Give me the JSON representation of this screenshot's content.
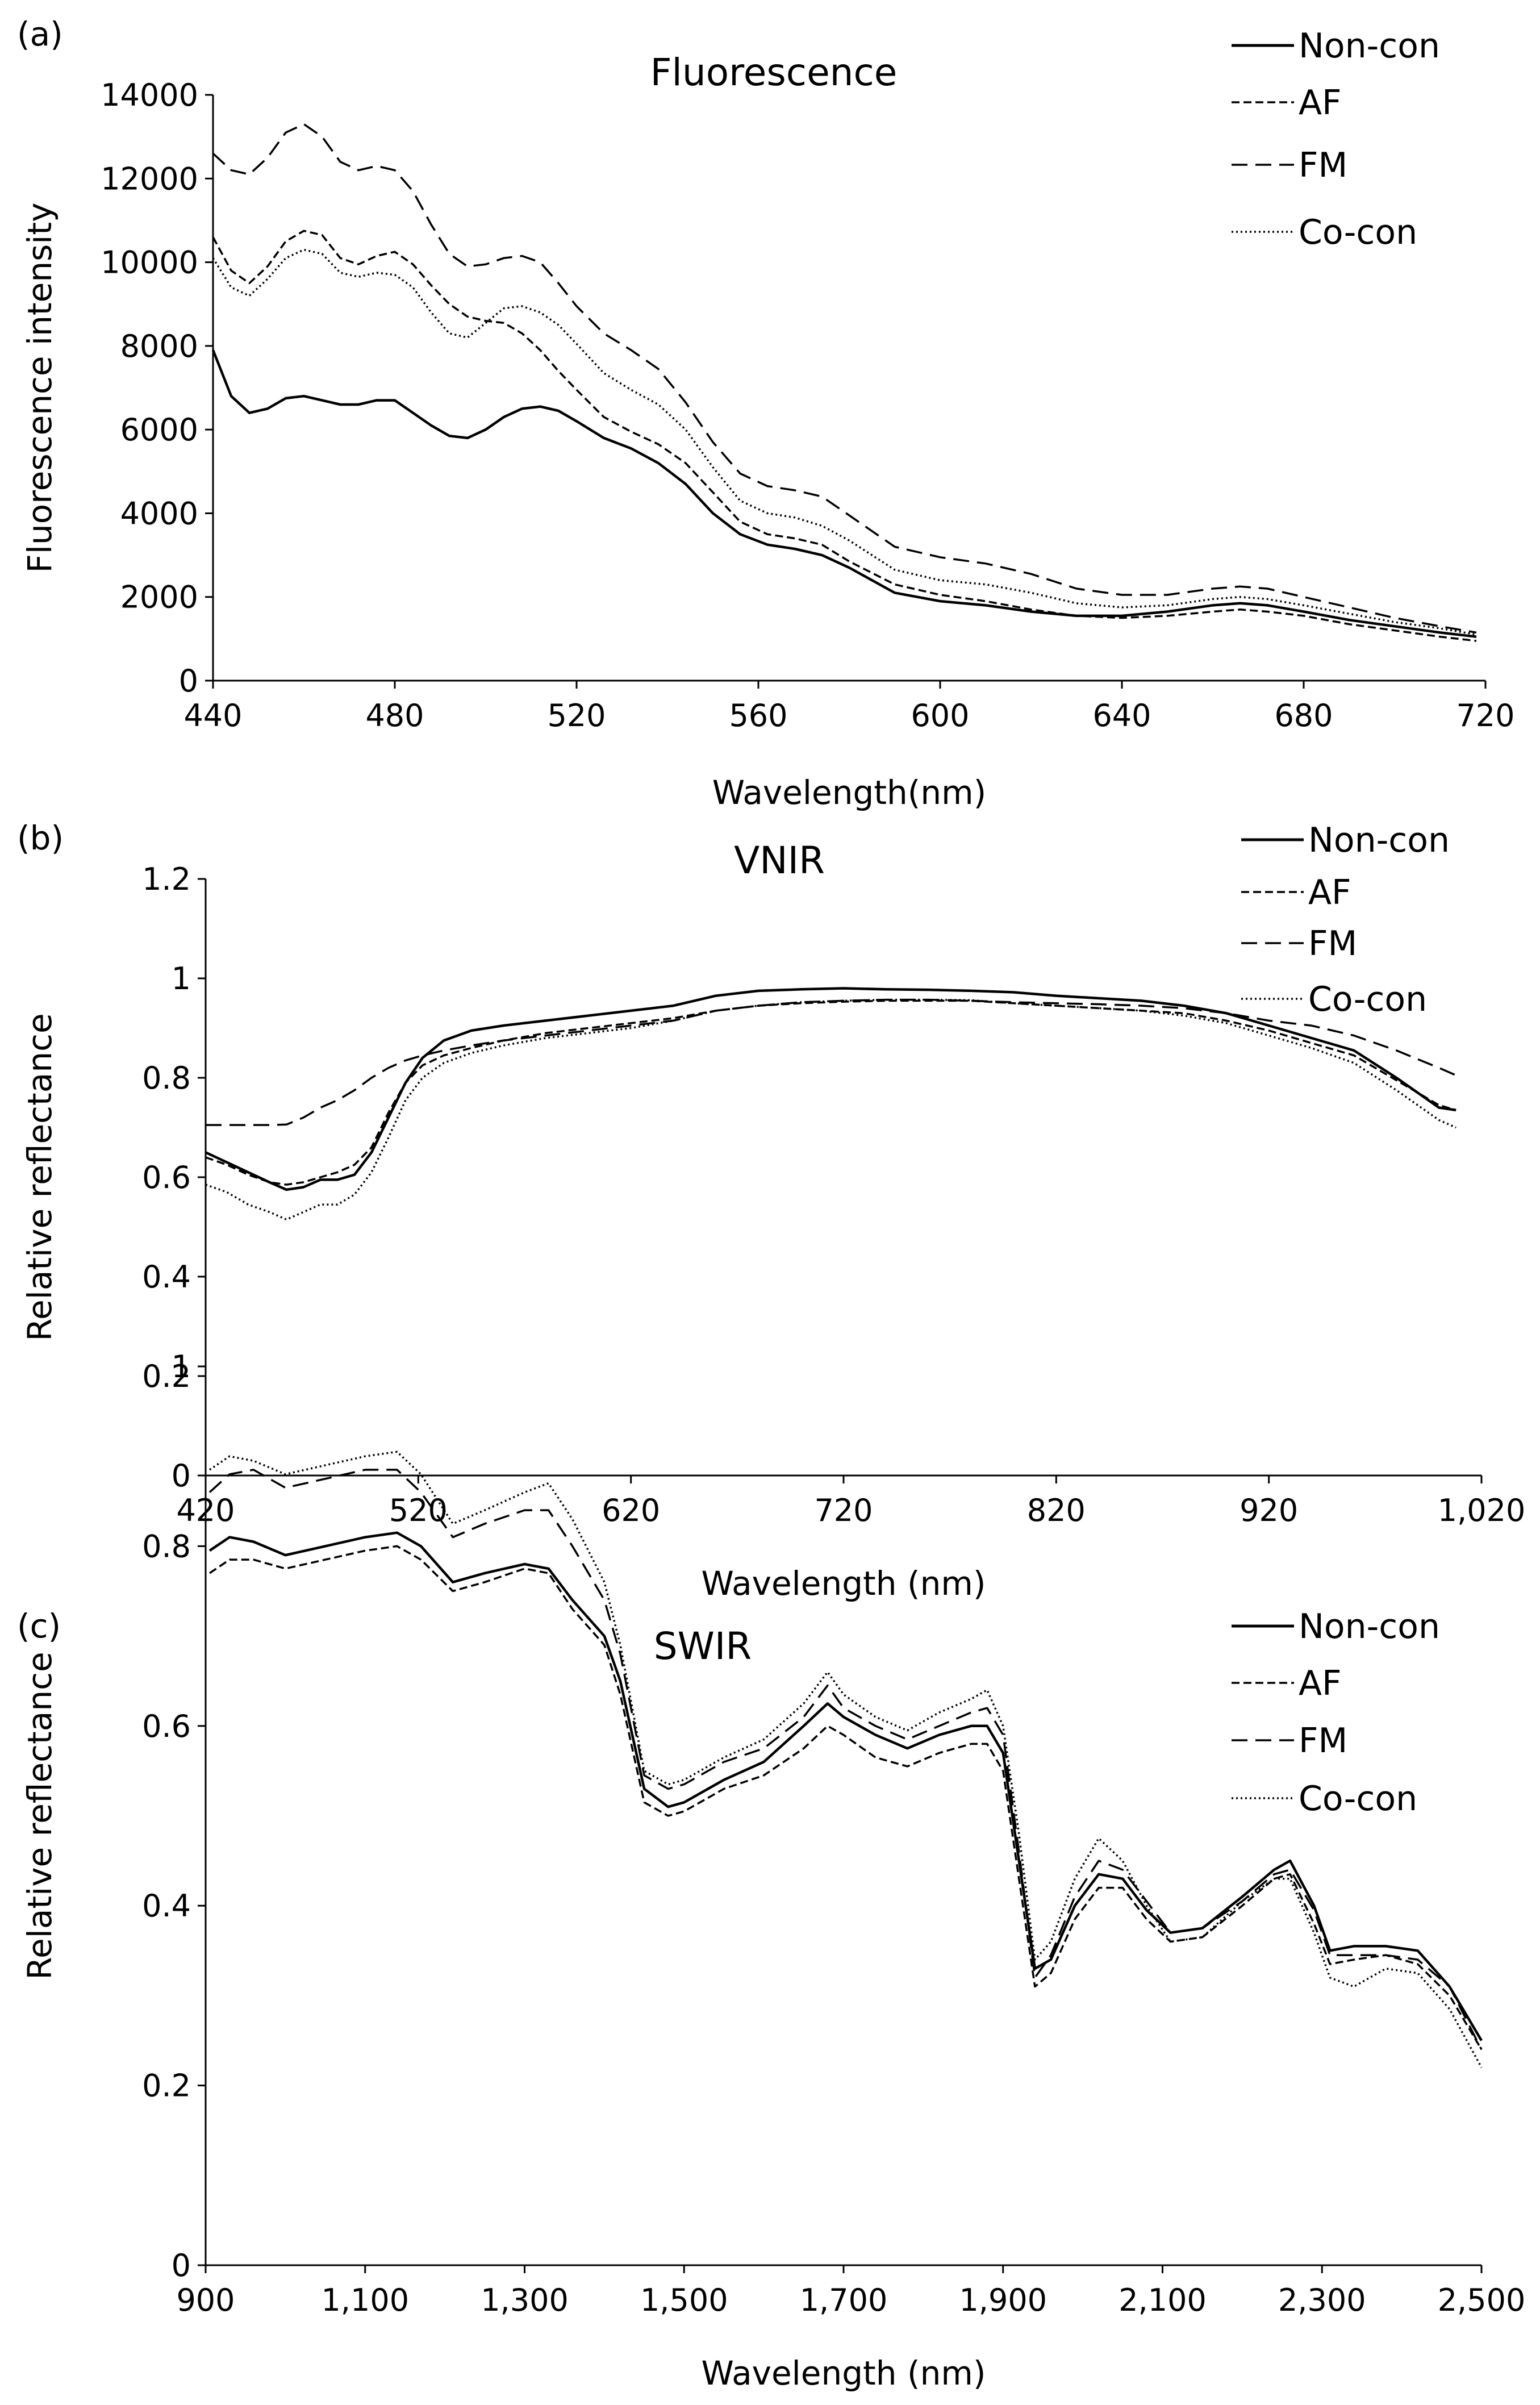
{
  "chart_data": [
    {
      "panel_label": "(a)",
      "type": "line",
      "title": "Fluorescence",
      "xlabel": "Wavelength(nm)",
      "ylabel": "Fluorescence intensity",
      "xlim": [
        440,
        720
      ],
      "ylim": [
        0,
        14000
      ],
      "x_ticks": [
        440,
        480,
        520,
        560,
        600,
        640,
        680,
        720
      ],
      "x_tick_labels": [
        "440",
        "480",
        "520",
        "560",
        "600",
        "640",
        "680",
        "720"
      ],
      "y_ticks": [
        0,
        2000,
        4000,
        6000,
        8000,
        10000,
        12000,
        14000
      ],
      "y_tick_labels": [
        "0",
        "2000",
        "4000",
        "6000",
        "8000",
        "10000",
        "12000",
        "14000"
      ],
      "legend_position": "top-right",
      "x": [
        440,
        444,
        448,
        452,
        456,
        460,
        464,
        468,
        472,
        476,
        480,
        484,
        488,
        492,
        496,
        500,
        504,
        508,
        512,
        516,
        520,
        526,
        532,
        538,
        544,
        550,
        556,
        562,
        568,
        574,
        580,
        590,
        600,
        610,
        620,
        630,
        640,
        650,
        660,
        666,
        672,
        680,
        690,
        700,
        710,
        718
      ],
      "series": [
        {
          "name": "Non-con",
          "style": "solid",
          "values": [
            7900,
            6800,
            6400,
            6500,
            6750,
            6800,
            6700,
            6600,
            6600,
            6700,
            6700,
            6400,
            6100,
            5850,
            5800,
            6000,
            6300,
            6500,
            6550,
            6450,
            6200,
            5800,
            5550,
            5200,
            4700,
            4000,
            3500,
            3250,
            3150,
            3000,
            2700,
            2100,
            1900,
            1800,
            1650,
            1550,
            1550,
            1650,
            1800,
            1850,
            1800,
            1650,
            1450,
            1300,
            1150,
            1050
          ]
        },
        {
          "name": "AF",
          "style": "dashed",
          "values": [
            10600,
            9800,
            9500,
            9900,
            10500,
            10750,
            10650,
            10100,
            9950,
            10150,
            10250,
            9950,
            9450,
            9000,
            8700,
            8600,
            8550,
            8300,
            7900,
            7400,
            6950,
            6300,
            5950,
            5650,
            5200,
            4500,
            3800,
            3500,
            3400,
            3250,
            2850,
            2300,
            2050,
            1900,
            1700,
            1550,
            1500,
            1550,
            1650,
            1700,
            1650,
            1550,
            1350,
            1200,
            1050,
            950
          ]
        },
        {
          "name": "FM",
          "style": "long-dashed",
          "values": [
            12600,
            12200,
            12100,
            12500,
            13100,
            13300,
            13000,
            12400,
            12200,
            12300,
            12200,
            11700,
            10900,
            10200,
            9900,
            9950,
            10100,
            10150,
            10000,
            9500,
            8950,
            8300,
            7900,
            7450,
            6650,
            5700,
            4950,
            4650,
            4550,
            4400,
            3950,
            3200,
            2950,
            2800,
            2550,
            2200,
            2050,
            2050,
            2200,
            2250,
            2200,
            2000,
            1750,
            1500,
            1300,
            1150
          ]
        },
        {
          "name": "Co-con",
          "style": "dotted",
          "values": [
            10100,
            9400,
            9200,
            9600,
            10100,
            10300,
            10200,
            9750,
            9650,
            9750,
            9700,
            9400,
            8800,
            8300,
            8200,
            8550,
            8900,
            8950,
            8800,
            8500,
            8050,
            7350,
            6950,
            6600,
            6000,
            5100,
            4300,
            4000,
            3900,
            3700,
            3350,
            2650,
            2400,
            2300,
            2100,
            1850,
            1750,
            1800,
            1950,
            2000,
            1950,
            1800,
            1600,
            1400,
            1250,
            1100
          ]
        }
      ]
    },
    {
      "panel_label": "(b)",
      "type": "line",
      "title": "VNIR",
      "xlabel": "Wavelength (nm)",
      "ylabel": "Relative reflectance",
      "xlim": [
        420,
        1020
      ],
      "ylim": [
        0,
        1.2
      ],
      "x_ticks": [
        420,
        520,
        620,
        720,
        820,
        920,
        1020
      ],
      "x_tick_labels": [
        "420",
        "520",
        "620",
        "720",
        "820",
        "920",
        "1,020"
      ],
      "y_ticks": [
        0,
        0.2,
        0.4,
        0.6,
        0.8,
        1.0,
        1.2
      ],
      "y_tick_labels": [
        "0",
        "0.2",
        "0.4",
        "0.6",
        "0.8",
        "1",
        "1.2"
      ],
      "legend_position": "top-right",
      "x": [
        420,
        430,
        440,
        450,
        458,
        466,
        474,
        482,
        490,
        498,
        506,
        514,
        522,
        532,
        545,
        560,
        580,
        600,
        620,
        640,
        660,
        680,
        700,
        720,
        740,
        760,
        780,
        800,
        820,
        840,
        860,
        880,
        900,
        920,
        940,
        960,
        980,
        1000,
        1008
      ],
      "series": [
        {
          "name": "Non-con",
          "style": "solid",
          "values": [
            0.65,
            0.63,
            0.61,
            0.59,
            0.575,
            0.58,
            0.595,
            0.595,
            0.605,
            0.65,
            0.72,
            0.79,
            0.84,
            0.875,
            0.895,
            0.905,
            0.915,
            0.925,
            0.935,
            0.945,
            0.965,
            0.975,
            0.978,
            0.98,
            0.978,
            0.977,
            0.975,
            0.972,
            0.965,
            0.96,
            0.955,
            0.945,
            0.93,
            0.905,
            0.88,
            0.855,
            0.8,
            0.74,
            0.735
          ]
        },
        {
          "name": "AF",
          "style": "dashed",
          "values": [
            0.64,
            0.625,
            0.605,
            0.59,
            0.585,
            0.59,
            0.6,
            0.61,
            0.625,
            0.66,
            0.73,
            0.79,
            0.825,
            0.845,
            0.86,
            0.875,
            0.89,
            0.9,
            0.91,
            0.92,
            0.935,
            0.945,
            0.95,
            0.953,
            0.955,
            0.955,
            0.955,
            0.95,
            0.945,
            0.94,
            0.935,
            0.93,
            0.915,
            0.895,
            0.87,
            0.845,
            0.795,
            0.745,
            0.735
          ]
        },
        {
          "name": "FM",
          "style": "long-dashed",
          "values": [
            0.705,
            0.705,
            0.705,
            0.705,
            0.706,
            0.72,
            0.74,
            0.755,
            0.775,
            0.8,
            0.82,
            0.835,
            0.845,
            0.855,
            0.865,
            0.875,
            0.885,
            0.895,
            0.905,
            0.915,
            0.935,
            0.945,
            0.952,
            0.955,
            0.957,
            0.957,
            0.955,
            0.952,
            0.95,
            0.948,
            0.945,
            0.94,
            0.93,
            0.915,
            0.905,
            0.885,
            0.855,
            0.82,
            0.805
          ]
        },
        {
          "name": "Co-con",
          "style": "dotted",
          "values": [
            0.585,
            0.57,
            0.545,
            0.53,
            0.515,
            0.53,
            0.545,
            0.545,
            0.565,
            0.61,
            0.68,
            0.755,
            0.8,
            0.83,
            0.85,
            0.865,
            0.88,
            0.89,
            0.9,
            0.915,
            0.935,
            0.945,
            0.952,
            0.955,
            0.957,
            0.957,
            0.956,
            0.95,
            0.945,
            0.94,
            0.935,
            0.925,
            0.91,
            0.885,
            0.86,
            0.83,
            0.775,
            0.715,
            0.7
          ]
        }
      ]
    },
    {
      "panel_label": "(c)",
      "type": "line",
      "title": "SWIR",
      "xlabel": "Wavelength (nm)",
      "ylabel": "Relative reflectance",
      "xlim": [
        900,
        2500
      ],
      "ylim": [
        0,
        1
      ],
      "x_ticks": [
        900,
        1100,
        1300,
        1500,
        1700,
        1900,
        2100,
        2300,
        2500
      ],
      "x_tick_labels": [
        "900",
        "1,100",
        "1,300",
        "1,500",
        "1,700",
        "1,900",
        "2,100",
        "2,300",
        "2,500"
      ],
      "y_ticks": [
        0,
        0.2,
        0.4,
        0.6,
        0.8,
        1.0
      ],
      "y_tick_labels": [
        "0",
        "0.2",
        "0.4",
        "0.6",
        "0.8",
        "1"
      ],
      "legend_position": "top-right",
      "x": [
        905,
        930,
        960,
        1000,
        1050,
        1100,
        1140,
        1170,
        1210,
        1250,
        1300,
        1330,
        1360,
        1400,
        1420,
        1450,
        1480,
        1500,
        1550,
        1600,
        1650,
        1680,
        1700,
        1740,
        1780,
        1820,
        1860,
        1880,
        1900,
        1920,
        1940,
        1960,
        1990,
        2020,
        2050,
        2080,
        2110,
        2150,
        2200,
        2240,
        2260,
        2290,
        2310,
        2340,
        2380,
        2420,
        2460,
        2500
      ],
      "series": [
        {
          "name": "Non-con",
          "style": "solid",
          "values": [
            0.795,
            0.81,
            0.805,
            0.79,
            0.8,
            0.81,
            0.815,
            0.8,
            0.76,
            0.77,
            0.78,
            0.775,
            0.74,
            0.7,
            0.65,
            0.53,
            0.51,
            0.515,
            0.54,
            0.56,
            0.6,
            0.625,
            0.61,
            0.59,
            0.575,
            0.59,
            0.6,
            0.6,
            0.57,
            0.45,
            0.33,
            0.34,
            0.4,
            0.435,
            0.43,
            0.395,
            0.37,
            0.375,
            0.41,
            0.44,
            0.45,
            0.4,
            0.35,
            0.355,
            0.355,
            0.35,
            0.31,
            0.25
          ]
        },
        {
          "name": "AF",
          "style": "dashed",
          "values": [
            0.77,
            0.785,
            0.785,
            0.775,
            0.785,
            0.795,
            0.8,
            0.785,
            0.75,
            0.76,
            0.775,
            0.77,
            0.73,
            0.69,
            0.635,
            0.515,
            0.5,
            0.505,
            0.53,
            0.545,
            0.575,
            0.6,
            0.59,
            0.565,
            0.555,
            0.57,
            0.58,
            0.58,
            0.55,
            0.43,
            0.31,
            0.325,
            0.385,
            0.42,
            0.42,
            0.385,
            0.36,
            0.365,
            0.4,
            0.43,
            0.435,
            0.38,
            0.335,
            0.34,
            0.345,
            0.335,
            0.3,
            0.24
          ]
        },
        {
          "name": "FM",
          "style": "long-dashed",
          "values": [
            0.86,
            0.88,
            0.885,
            0.865,
            0.875,
            0.885,
            0.885,
            0.86,
            0.81,
            0.825,
            0.84,
            0.84,
            0.8,
            0.74,
            0.68,
            0.545,
            0.53,
            0.535,
            0.56,
            0.575,
            0.61,
            0.645,
            0.62,
            0.6,
            0.585,
            0.6,
            0.615,
            0.62,
            0.59,
            0.46,
            0.32,
            0.345,
            0.41,
            0.45,
            0.44,
            0.405,
            0.37,
            0.375,
            0.405,
            0.435,
            0.44,
            0.395,
            0.345,
            0.345,
            0.345,
            0.34,
            0.31,
            0.24
          ]
        },
        {
          "name": "Co-con",
          "style": "dotted",
          "values": [
            0.885,
            0.9,
            0.895,
            0.88,
            0.89,
            0.9,
            0.905,
            0.88,
            0.825,
            0.84,
            0.86,
            0.87,
            0.83,
            0.76,
            0.69,
            0.55,
            0.535,
            0.54,
            0.565,
            0.585,
            0.625,
            0.66,
            0.635,
            0.61,
            0.595,
            0.615,
            0.63,
            0.64,
            0.6,
            0.48,
            0.34,
            0.36,
            0.43,
            0.475,
            0.45,
            0.4,
            0.36,
            0.365,
            0.405,
            0.43,
            0.43,
            0.37,
            0.32,
            0.31,
            0.33,
            0.325,
            0.285,
            0.22
          ]
        }
      ]
    }
  ]
}
